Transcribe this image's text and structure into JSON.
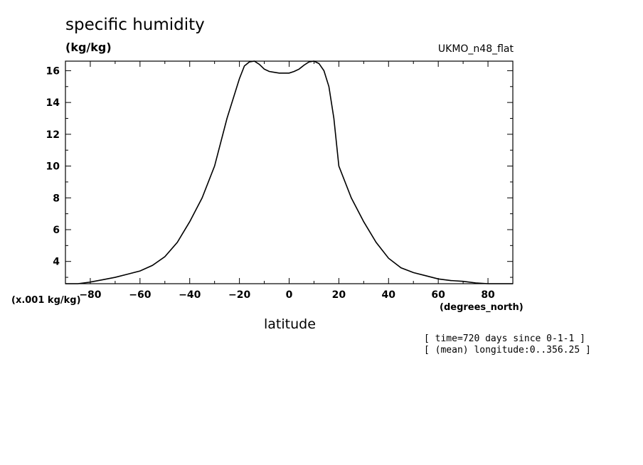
{
  "chart_data": {
    "type": "line",
    "title": "specific humidity",
    "ylabel": "(kg/kg)",
    "yscale_note": "(x.001 kg/kg)",
    "xlabel": "latitude",
    "xunits": "(degrees_north)",
    "model_label": "UKMO_n48_flat",
    "notes": [
      "[ time=720 days since 0-1-1 ]",
      "[ (mean) longitude:0..356.25 ]"
    ],
    "xlim": [
      -90,
      90
    ],
    "ylim": [
      2.6,
      16.6
    ],
    "xticks": [
      -80,
      -60,
      -40,
      -20,
      0,
      20,
      40,
      60,
      80
    ],
    "yticks": [
      4,
      6,
      8,
      10,
      12,
      14,
      16
    ],
    "grid": false,
    "series": [
      {
        "x": [
          -90,
          -85,
          -80,
          -75,
          -70,
          -65,
          -60,
          -55,
          -50,
          -45,
          -40,
          -35,
          -30,
          -25,
          -20,
          -18,
          -16,
          -14,
          -12,
          -10,
          -8,
          -6,
          -4,
          -2,
          0,
          2,
          4,
          6,
          8,
          10,
          12,
          14,
          16,
          18,
          20,
          25,
          30,
          35,
          40,
          45,
          50,
          55,
          60,
          65,
          70,
          75,
          80,
          85,
          90
        ],
        "y": [
          2.6,
          2.6,
          2.7,
          2.85,
          3.0,
          3.2,
          3.4,
          3.75,
          4.3,
          5.2,
          6.5,
          8.0,
          10.0,
          13.0,
          15.5,
          16.3,
          16.55,
          16.6,
          16.4,
          16.1,
          15.95,
          15.9,
          15.85,
          15.85,
          15.85,
          15.95,
          16.1,
          16.35,
          16.55,
          16.6,
          16.45,
          16.0,
          15.0,
          13.0,
          10.0,
          8.0,
          6.5,
          5.2,
          4.2,
          3.6,
          3.3,
          3.1,
          2.9,
          2.8,
          2.75,
          2.65,
          2.6,
          2.6,
          2.6
        ]
      }
    ]
  }
}
